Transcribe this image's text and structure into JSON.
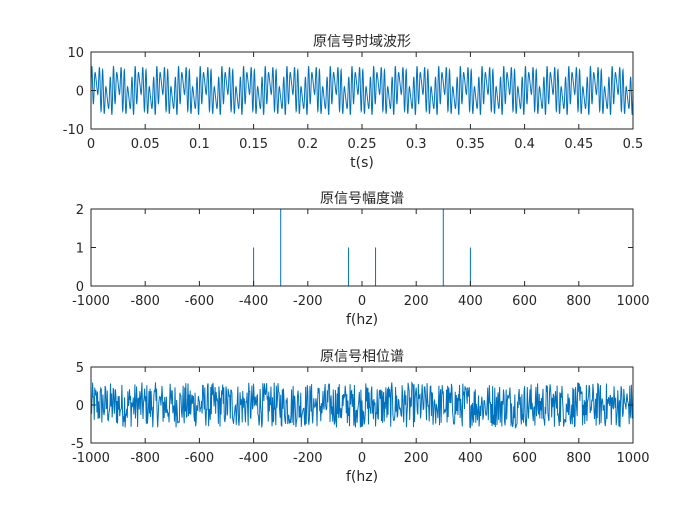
{
  "chart_data": [
    {
      "type": "line",
      "title": "原信号时域波形",
      "xlabel": "t(s)",
      "ylabel": "",
      "xlim": [
        0,
        0.5
      ],
      "ylim": [
        -10,
        10
      ],
      "xticks": [
        0,
        0.05,
        0.1,
        0.15,
        0.2,
        0.25,
        0.3,
        0.35,
        0.4,
        0.45,
        0.5
      ],
      "xtick_labels": [
        "0",
        "0.05",
        "0.1",
        "0.15",
        "0.2",
        "0.25",
        "0.3",
        "0.35",
        "0.4",
        "0.45",
        "0.5"
      ],
      "yticks": [
        -10,
        0,
        10
      ],
      "ytick_labels": [
        "-10",
        "0",
        "10"
      ],
      "grid": false,
      "series": [
        {
          "color": "#0072BD",
          "components": [
            {
              "freq_hz": 300,
              "amplitude": 4
            },
            {
              "freq_hz": 50,
              "amplitude": 2
            },
            {
              "freq_hz": 400,
              "amplitude": 2
            }
          ],
          "t_range": [
            0,
            0.5
          ]
        }
      ]
    },
    {
      "type": "line",
      "title": "原信号幅度谱",
      "xlabel": "f(hz)",
      "ylabel": "",
      "xlim": [
        -1000,
        1000
      ],
      "ylim": [
        0,
        2
      ],
      "xticks": [
        -1000,
        -800,
        -600,
        -400,
        -200,
        0,
        200,
        400,
        600,
        800,
        1000
      ],
      "xtick_labels": [
        "-1000",
        "-800",
        "-600",
        "-400",
        "-200",
        "0",
        "200",
        "400",
        "600",
        "800",
        "1000"
      ],
      "yticks": [
        0,
        1,
        2
      ],
      "ytick_labels": [
        "0",
        "1",
        "2"
      ],
      "grid": false,
      "series": [
        {
          "color": "#0072BD",
          "peaks": [
            {
              "x": -400,
              "y": 1
            },
            {
              "x": -300,
              "y": 2
            },
            {
              "x": -50,
              "y": 1
            },
            {
              "x": 50,
              "y": 1
            },
            {
              "x": 300,
              "y": 2
            },
            {
              "x": 400,
              "y": 1
            }
          ]
        }
      ]
    },
    {
      "type": "line",
      "title": "原信号相位谱",
      "xlabel": "f(hz)",
      "ylabel": "",
      "xlim": [
        -1000,
        1000
      ],
      "ylim": [
        -5,
        5
      ],
      "xticks": [
        -1000,
        -800,
        -600,
        -400,
        -200,
        0,
        200,
        400,
        600,
        800,
        1000
      ],
      "xtick_labels": [
        "-1000",
        "-800",
        "-600",
        "-400",
        "-200",
        "0",
        "200",
        "400",
        "600",
        "800",
        "1000"
      ],
      "yticks": [
        -5,
        0,
        5
      ],
      "ytick_labels": [
        "-5",
        "0",
        "5"
      ],
      "grid": false,
      "series": [
        {
          "color": "#0072BD",
          "description_values": {
            "min": -3.14,
            "max": 3.14
          }
        }
      ]
    }
  ]
}
